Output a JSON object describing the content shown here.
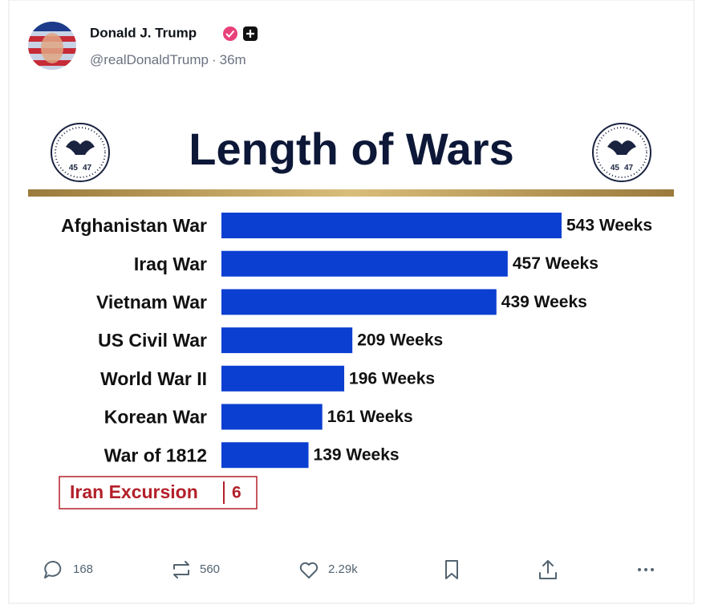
{
  "post": {
    "author": "Donald J. Trump",
    "handle": "@realDonaldTrump",
    "time": "36m",
    "actions": {
      "replies": "168",
      "reposts": "560",
      "likes": "2.29k"
    }
  },
  "chart_data": {
    "type": "bar",
    "orientation": "horizontal",
    "title": "Length of Wars",
    "seal_numbers": [
      "45",
      "47"
    ],
    "categories": [
      "Afghanistan War",
      "Iraq War",
      "Vietnam War",
      "US Civil War",
      "World War II",
      "Korean War",
      "War of 1812"
    ],
    "values": [
      543,
      457,
      439,
      209,
      196,
      161,
      139
    ],
    "value_labels": [
      "543 Weeks",
      "457 Weeks",
      "439 Weeks",
      "209 Weeks",
      "196 Weeks",
      "161 Weeks",
      "139 Weeks"
    ],
    "color": "#0b3fd1",
    "highlight": {
      "category": "Iran Excursion",
      "value": 6,
      "color": "#b3202a"
    }
  }
}
